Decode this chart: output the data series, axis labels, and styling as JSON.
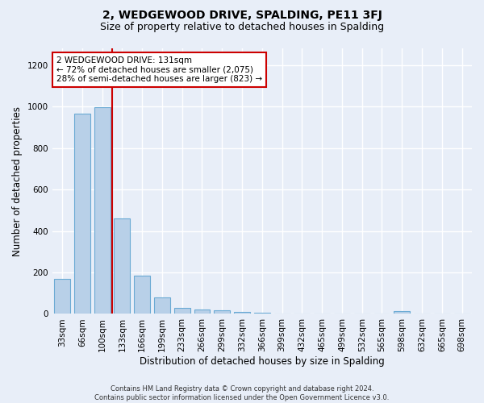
{
  "title": "2, WEDGEWOOD DRIVE, SPALDING, PE11 3FJ",
  "subtitle": "Size of property relative to detached houses in Spalding",
  "xlabel": "Distribution of detached houses by size in Spalding",
  "ylabel": "Number of detached properties",
  "categories": [
    "33sqm",
    "66sqm",
    "100sqm",
    "133sqm",
    "166sqm",
    "199sqm",
    "233sqm",
    "266sqm",
    "299sqm",
    "332sqm",
    "366sqm",
    "399sqm",
    "432sqm",
    "465sqm",
    "499sqm",
    "532sqm",
    "565sqm",
    "598sqm",
    "632sqm",
    "665sqm",
    "698sqm"
  ],
  "values": [
    170,
    965,
    995,
    460,
    185,
    80,
    28,
    22,
    16,
    10,
    5,
    0,
    0,
    0,
    0,
    0,
    0,
    15,
    0,
    0,
    0
  ],
  "bar_color": "#b8d0e8",
  "bar_edge_color": "#6aaad4",
  "property_line_x": 3,
  "property_line_color": "#cc0000",
  "annotation_text": "2 WEDGEWOOD DRIVE: 131sqm\n← 72% of detached houses are smaller (2,075)\n28% of semi-detached houses are larger (823) →",
  "annotation_box_color": "#ffffff",
  "annotation_box_edge_color": "#cc0000",
  "ylim": [
    0,
    1280
  ],
  "yticks": [
    0,
    200,
    400,
    600,
    800,
    1000,
    1200
  ],
  "footer_text": "Contains HM Land Registry data © Crown copyright and database right 2024.\nContains public sector information licensed under the Open Government Licence v3.0.",
  "bg_color": "#e8eef8",
  "plot_bg_color": "#e8eef8",
  "grid_color": "#ffffff",
  "title_fontsize": 10,
  "subtitle_fontsize": 9,
  "tick_fontsize": 7.5,
  "ylabel_fontsize": 8.5,
  "xlabel_fontsize": 8.5,
  "annotation_fontsize": 7.5,
  "footer_fontsize": 6.0
}
